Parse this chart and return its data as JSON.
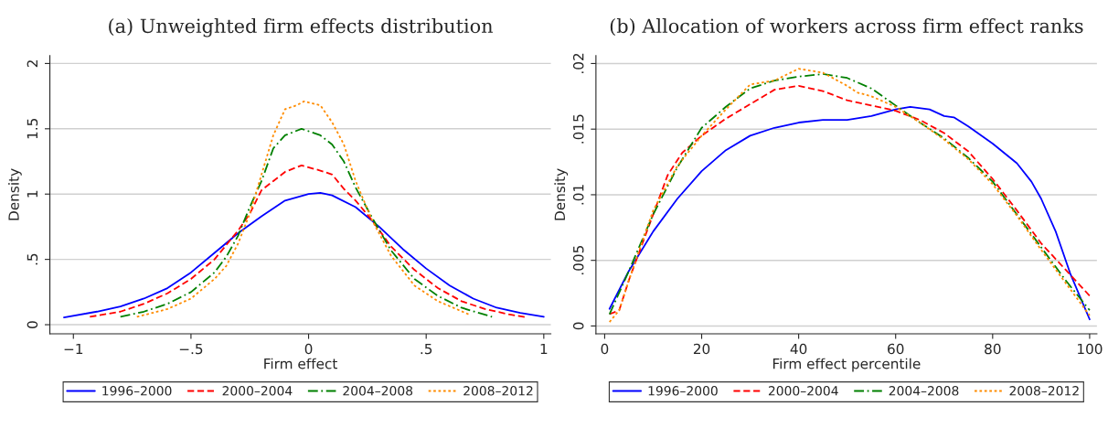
{
  "chart_data": [
    {
      "type": "line",
      "title": "(a) Unweighted firm effects distribution",
      "xlabel": "Firm effect",
      "ylabel": "Density",
      "xlim": [
        -1.1,
        1.03
      ],
      "ylim": [
        -0.07,
        2.06
      ],
      "xticks": [
        {
          "value": -1,
          "label": "−1"
        },
        {
          "value": -0.5,
          "label": "−.5"
        },
        0,
        {
          "value": 0.5,
          "label": ".5"
        },
        1
      ],
      "yticks": [
        0,
        {
          "value": 0.5,
          "label": ".5"
        },
        1,
        {
          "value": 1.5,
          "label": "1.5"
        },
        2
      ],
      "grid": "y",
      "legend": "bottom",
      "series": [
        {
          "name": "1996–2000",
          "color": "#0000ff",
          "line_style": "solid",
          "x": [
            -1.04,
            -0.9,
            -0.8,
            -0.7,
            -0.6,
            -0.5,
            -0.4,
            -0.3,
            -0.2,
            -0.1,
            0,
            0.05,
            0.1,
            0.2,
            0.3,
            0.4,
            0.5,
            0.6,
            0.7,
            0.8,
            0.9,
            1.0
          ],
          "values": [
            0.055,
            0.1,
            0.14,
            0.2,
            0.28,
            0.4,
            0.55,
            0.7,
            0.83,
            0.95,
            1.0,
            1.01,
            0.99,
            0.9,
            0.75,
            0.58,
            0.43,
            0.3,
            0.2,
            0.13,
            0.09,
            0.06
          ]
        },
        {
          "name": "2000–2004",
          "color": "#ff0000",
          "line_style": "dashed",
          "x": [
            -0.93,
            -0.8,
            -0.7,
            -0.6,
            -0.5,
            -0.4,
            -0.3,
            -0.25,
            -0.2,
            -0.15,
            -0.1,
            -0.03,
            0.05,
            0.1,
            0.15,
            0.2,
            0.27,
            0.35,
            0.45,
            0.55,
            0.65,
            0.75,
            0.85,
            0.93
          ],
          "values": [
            0.06,
            0.1,
            0.16,
            0.24,
            0.35,
            0.5,
            0.72,
            0.85,
            1.03,
            1.1,
            1.17,
            1.22,
            1.18,
            1.15,
            1.04,
            0.95,
            0.8,
            0.6,
            0.42,
            0.28,
            0.18,
            0.12,
            0.08,
            0.055
          ]
        },
        {
          "name": "2004–2008",
          "color": "#008000",
          "line_style": "dashdot",
          "x": [
            -0.8,
            -0.7,
            -0.6,
            -0.5,
            -0.4,
            -0.35,
            -0.3,
            -0.25,
            -0.2,
            -0.15,
            -0.1,
            -0.03,
            0.05,
            0.1,
            0.15,
            0.2,
            0.27,
            0.35,
            0.45,
            0.55,
            0.65,
            0.78
          ],
          "values": [
            0.06,
            0.1,
            0.16,
            0.25,
            0.4,
            0.52,
            0.68,
            0.9,
            1.1,
            1.35,
            1.45,
            1.5,
            1.45,
            1.38,
            1.25,
            1.05,
            0.82,
            0.57,
            0.35,
            0.22,
            0.13,
            0.06
          ]
        },
        {
          "name": "2008–2012",
          "color": "#ff8c00",
          "line_style": "dotted",
          "x": [
            -0.73,
            -0.6,
            -0.5,
            -0.4,
            -0.35,
            -0.3,
            -0.25,
            -0.2,
            -0.15,
            -0.1,
            -0.05,
            -0.02,
            0.05,
            0.1,
            0.15,
            0.2,
            0.27,
            0.35,
            0.45,
            0.55,
            0.68
          ],
          "values": [
            0.06,
            0.12,
            0.2,
            0.35,
            0.45,
            0.62,
            0.85,
            1.15,
            1.45,
            1.65,
            1.68,
            1.71,
            1.68,
            1.55,
            1.38,
            1.1,
            0.8,
            0.53,
            0.3,
            0.18,
            0.08
          ]
        }
      ]
    },
    {
      "type": "line",
      "title": "(b) Allocation of workers across firm effect ranks",
      "xlabel": "Firm effect percentile",
      "ylabel": "Density",
      "xlim": [
        -1.8,
        101.5
      ],
      "ylim": [
        -0.0006,
        0.0206
      ],
      "xticks": [
        0,
        20,
        40,
        60,
        80,
        100
      ],
      "yticks": [
        0,
        {
          "value": 0.005,
          "label": ".005"
        },
        {
          "value": 0.01,
          "label": ".01"
        },
        {
          "value": 0.015,
          "label": ".015"
        },
        {
          "value": 0.02,
          "label": ".02"
        }
      ],
      "grid": "y",
      "legend": "bottom",
      "series": [
        {
          "name": "1996–2000",
          "color": "#0000ff",
          "line_style": "solid",
          "x": [
            1,
            5,
            10,
            15,
            20,
            25,
            30,
            35,
            40,
            45,
            50,
            55,
            60,
            63,
            67,
            70,
            72,
            75,
            80,
            85,
            88,
            90,
            93,
            96,
            100
          ],
          "values": [
            0.0013,
            0.0042,
            0.0072,
            0.0097,
            0.0118,
            0.0134,
            0.0145,
            0.0151,
            0.0155,
            0.0157,
            0.0157,
            0.016,
            0.0165,
            0.0167,
            0.0165,
            0.016,
            0.0159,
            0.0152,
            0.0139,
            0.0124,
            0.011,
            0.0097,
            0.0072,
            0.004,
            0.0005
          ]
        },
        {
          "name": "2000–2004",
          "color": "#ff0000",
          "line_style": "dashed",
          "x": [
            1,
            3,
            5,
            8,
            10,
            13,
            16,
            20,
            25,
            30,
            35,
            40,
            45,
            50,
            55,
            60,
            65,
            70,
            75,
            80,
            85,
            90,
            95,
            100
          ],
          "values": [
            0.0009,
            0.0012,
            0.0035,
            0.0065,
            0.0085,
            0.0115,
            0.0132,
            0.0145,
            0.0158,
            0.0169,
            0.018,
            0.0183,
            0.0179,
            0.0172,
            0.0168,
            0.0164,
            0.0157,
            0.0147,
            0.0133,
            0.0112,
            0.0088,
            0.0063,
            0.0043,
            0.0023
          ]
        },
        {
          "name": "2004–2008",
          "color": "#008000",
          "line_style": "dashdot",
          "x": [
            1,
            5,
            10,
            15,
            20,
            25,
            30,
            35,
            40,
            45,
            50,
            55,
            60,
            65,
            70,
            75,
            80,
            85,
            90,
            95,
            100
          ],
          "values": [
            0.0009,
            0.0042,
            0.0085,
            0.0121,
            0.0151,
            0.0167,
            0.0181,
            0.0187,
            0.019,
            0.0192,
            0.0189,
            0.0181,
            0.0168,
            0.0155,
            0.0143,
            0.0128,
            0.011,
            0.0085,
            0.006,
            0.0035,
            0.0012
          ]
        },
        {
          "name": "2008–2012",
          "color": "#ff8c00",
          "line_style": "dotted",
          "x": [
            1,
            3,
            5,
            10,
            15,
            20,
            25,
            30,
            35,
            40,
            45,
            50,
            52,
            55,
            60,
            65,
            70,
            75,
            80,
            85,
            90,
            95,
            100
          ],
          "values": [
            0.0003,
            0.0012,
            0.0035,
            0.0088,
            0.0122,
            0.0145,
            0.0165,
            0.0184,
            0.0187,
            0.0196,
            0.0193,
            0.0183,
            0.0178,
            0.0175,
            0.0167,
            0.0155,
            0.0142,
            0.0127,
            0.0108,
            0.0084,
            0.0058,
            0.0033,
            0.0008
          ]
        }
      ]
    }
  ]
}
